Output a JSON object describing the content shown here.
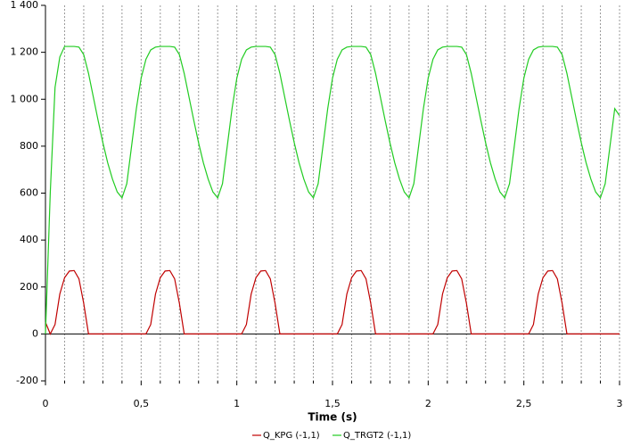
{
  "chart_data": {
    "type": "line",
    "x_label": "Time (s)",
    "xlim": [
      0,
      3
    ],
    "ylim": [
      -200,
      1400
    ],
    "xticks": [
      0,
      {
        "value": 0.5,
        "label": "0,5"
      },
      1,
      {
        "value": 1.5,
        "label": "1,5"
      },
      2,
      {
        "value": 2.5,
        "label": "2,5"
      },
      3
    ],
    "xminorticks": [
      0.1,
      0.2,
      0.3,
      0.4,
      0.6,
      0.7,
      0.8,
      0.9,
      1.1,
      1.2,
      1.3,
      1.4,
      1.6,
      1.7,
      1.8,
      1.9,
      2.1,
      2.2,
      2.3,
      2.4,
      2.6,
      2.7,
      2.8,
      2.9
    ],
    "yticks": [
      -200,
      0,
      200,
      400,
      600,
      800,
      {
        "value": 1000,
        "label": "1 000"
      },
      {
        "value": 1200,
        "label": "1 200"
      },
      {
        "value": 1400,
        "label": "1 400"
      }
    ],
    "grid": true,
    "legend": "bottom",
    "x": [
      0,
      0.025,
      0.05,
      0.075,
      0.1,
      0.125,
      0.15,
      0.175,
      0.2,
      0.225,
      0.25,
      0.275,
      0.3,
      0.325,
      0.35,
      0.375,
      0.4,
      0.425,
      0.45,
      0.475,
      0.5,
      0.525,
      0.55,
      0.575,
      0.6,
      0.625,
      0.65,
      0.675,
      0.7,
      0.725,
      0.75,
      0.775,
      0.8,
      0.825,
      0.85,
      0.875,
      0.9,
      0.925,
      0.95,
      0.975,
      1,
      1.025,
      1.05,
      1.075,
      1.1,
      1.125,
      1.15,
      1.175,
      1.2,
      1.225,
      1.25,
      1.275,
      1.3,
      1.325,
      1.35,
      1.375,
      1.4,
      1.425,
      1.45,
      1.475,
      1.5,
      1.525,
      1.55,
      1.575,
      1.6,
      1.625,
      1.65,
      1.675,
      1.7,
      1.725,
      1.75,
      1.775,
      1.8,
      1.825,
      1.85,
      1.875,
      1.9,
      1.925,
      1.95,
      1.975,
      2,
      2.025,
      2.05,
      2.075,
      2.1,
      2.125,
      2.15,
      2.175,
      2.2,
      2.225,
      2.25,
      2.275,
      2.3,
      2.325,
      2.35,
      2.375,
      2.4,
      2.425,
      2.45,
      2.475,
      2.5,
      2.525,
      2.55,
      2.575,
      2.6,
      2.625,
      2.65,
      2.675,
      2.7,
      2.725,
      2.75,
      2.775,
      2.8,
      2.825,
      2.85,
      2.875,
      2.9,
      2.925,
      2.95,
      2.975,
      3
    ],
    "series": [
      {
        "name": "Q_KPG (-1,1)",
        "color": "#c00000",
        "values": [
          50,
          0,
          40,
          170,
          240,
          268,
          270,
          235,
          130,
          0,
          0,
          0,
          0,
          0,
          0,
          0,
          0,
          0,
          0,
          0,
          0,
          0,
          40,
          170,
          240,
          268,
          270,
          235,
          130,
          0,
          0,
          0,
          0,
          0,
          0,
          0,
          0,
          0,
          0,
          0,
          0,
          0,
          40,
          170,
          240,
          268,
          270,
          235,
          130,
          0,
          0,
          0,
          0,
          0,
          0,
          0,
          0,
          0,
          0,
          0,
          0,
          0,
          40,
          170,
          240,
          268,
          270,
          235,
          130,
          0,
          0,
          0,
          0,
          0,
          0,
          0,
          0,
          0,
          0,
          0,
          0,
          0,
          40,
          170,
          240,
          268,
          270,
          235,
          130,
          0,
          0,
          0,
          0,
          0,
          0,
          0,
          0,
          0,
          0,
          0,
          0,
          0,
          40,
          170,
          240,
          268,
          270,
          235,
          130,
          0,
          0,
          0,
          0,
          0,
          0,
          0,
          0,
          0,
          0,
          0,
          0
        ]
      },
      {
        "name": "Q_TRGT2 (-1,1)",
        "color": "#22cc22",
        "values": [
          0,
          600,
          1050,
          1180,
          1225,
          1225,
          1225,
          1222,
          1190,
          1110,
          1010,
          910,
          815,
          730,
          660,
          605,
          580,
          640,
          800,
          960,
          1090,
          1170,
          1210,
          1222,
          1225,
          1225,
          1225,
          1222,
          1190,
          1110,
          1010,
          910,
          815,
          730,
          660,
          605,
          580,
          640,
          800,
          960,
          1090,
          1170,
          1210,
          1222,
          1225,
          1225,
          1225,
          1222,
          1190,
          1110,
          1010,
          910,
          815,
          730,
          660,
          605,
          580,
          640,
          800,
          960,
          1090,
          1170,
          1210,
          1222,
          1225,
          1225,
          1225,
          1222,
          1190,
          1110,
          1010,
          910,
          815,
          730,
          660,
          605,
          580,
          640,
          800,
          960,
          1090,
          1170,
          1210,
          1222,
          1225,
          1225,
          1225,
          1222,
          1190,
          1110,
          1010,
          910,
          815,
          730,
          660,
          605,
          580,
          640,
          800,
          960,
          1090,
          1170,
          1210,
          1222,
          1225,
          1225,
          1225,
          1222,
          1190,
          1110,
          1010,
          910,
          815,
          730,
          660,
          605,
          580,
          640,
          800,
          960,
          930
        ]
      }
    ]
  }
}
